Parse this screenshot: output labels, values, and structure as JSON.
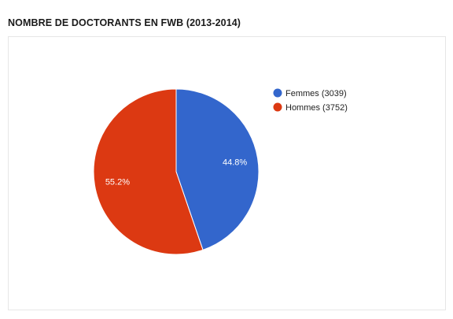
{
  "chart_data": {
    "type": "pie",
    "title": "NOMBRE DE DOCTORANTS EN FWB (2013-2014)",
    "slices": [
      {
        "label": "Femmes (3039)",
        "value": 3039,
        "percent_label": "44.8%",
        "color": "#3366cc"
      },
      {
        "label": "Hommes (3752)",
        "value": 3752,
        "percent_label": "55.2%",
        "color": "#dc3912"
      }
    ],
    "legend_position": "right",
    "start_angle_deg": 0,
    "direction": "clockwise"
  }
}
